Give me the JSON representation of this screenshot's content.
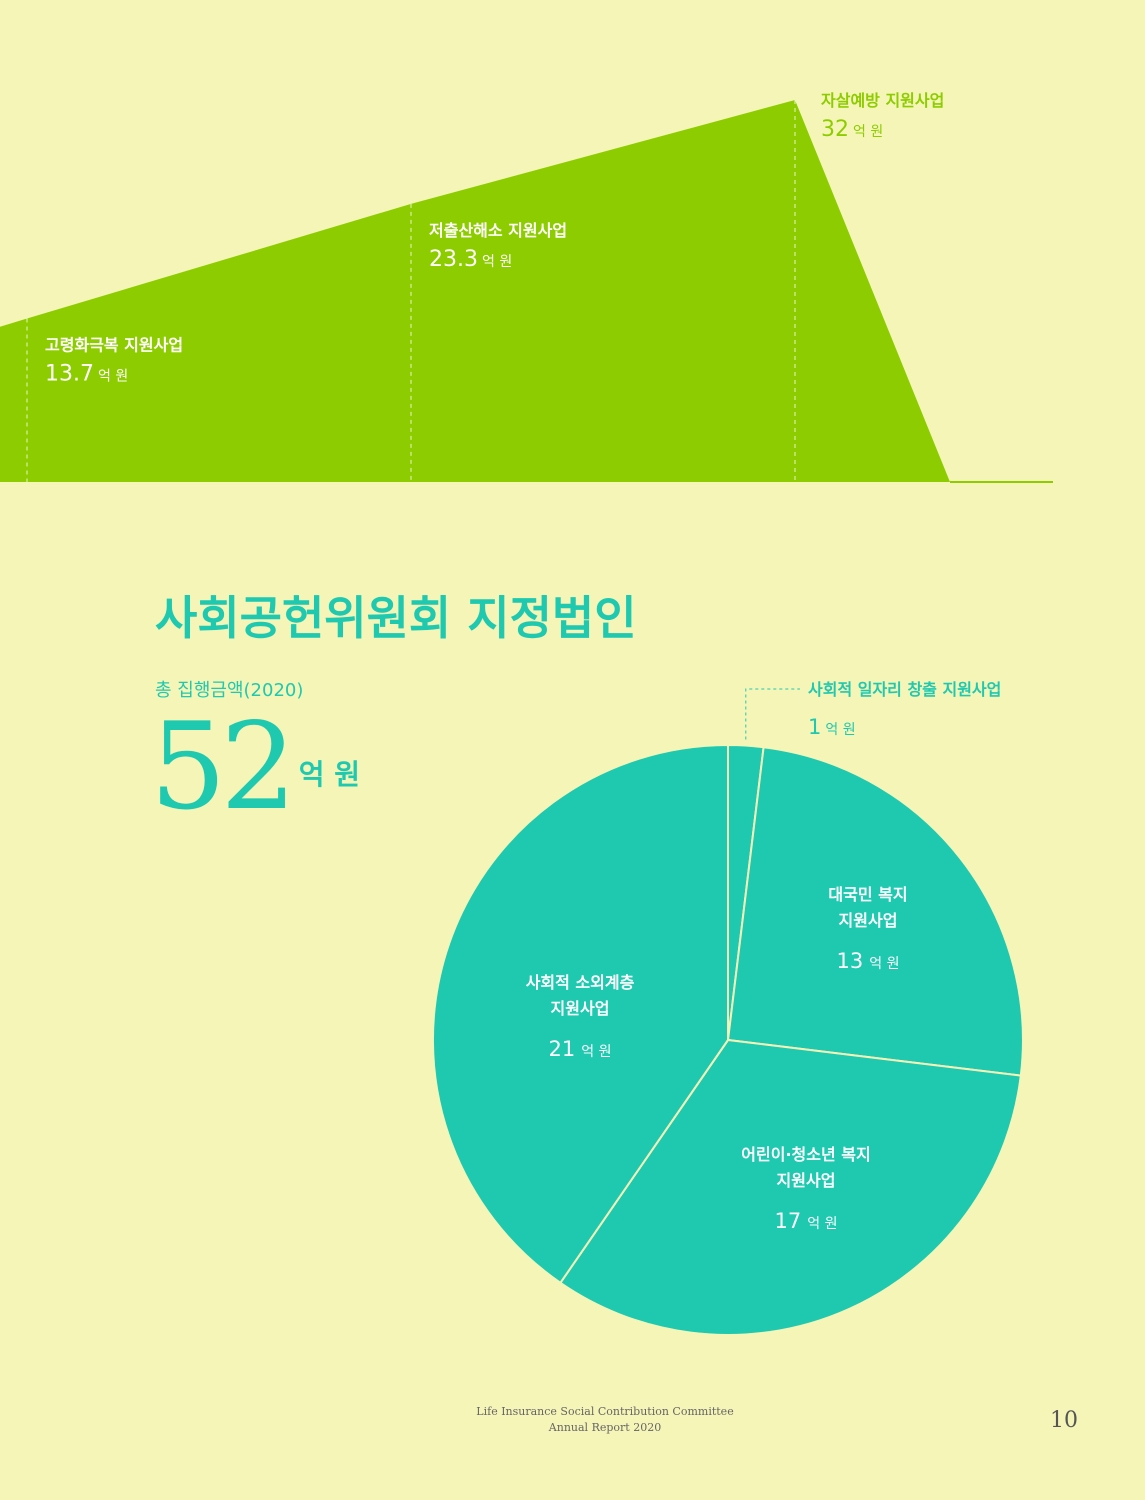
{
  "colors": {
    "background": "#f5f5b8",
    "green": "#8dcd00",
    "teal": "#1ec9b0"
  },
  "area_unit": "억 원",
  "pie_unit": "억 원",
  "chart_data": [
    {
      "type": "area",
      "categories": [
        "고령화극복 지원사업",
        "저출산해소 지원사업",
        "자살예방 지원사업"
      ],
      "values": [
        13.7,
        23.3,
        32
      ],
      "display_values": [
        "13.7",
        "23.3",
        "32"
      ],
      "unit": "억 원"
    },
    {
      "type": "pie",
      "title": "사회공헌위원회 지정법인",
      "total_label": "총 집행금액(2020)",
      "total_value": "52",
      "total_unit": "억 원",
      "slices": [
        {
          "label": [
            "사회적 일자리 창출 지원사업"
          ],
          "value": 1
        },
        {
          "label": [
            "대국민 복지",
            "지원사업"
          ],
          "value": 13
        },
        {
          "label": [
            "어린이·청소년 복지",
            "지원사업"
          ],
          "value": 17
        },
        {
          "label": [
            "사회적 소외계층",
            "지원사업"
          ],
          "value": 21
        }
      ]
    }
  ],
  "footer": {
    "line1": "Life Insurance Social Contribution Committee",
    "line2": "Annual Report 2020",
    "page_number": "10"
  }
}
